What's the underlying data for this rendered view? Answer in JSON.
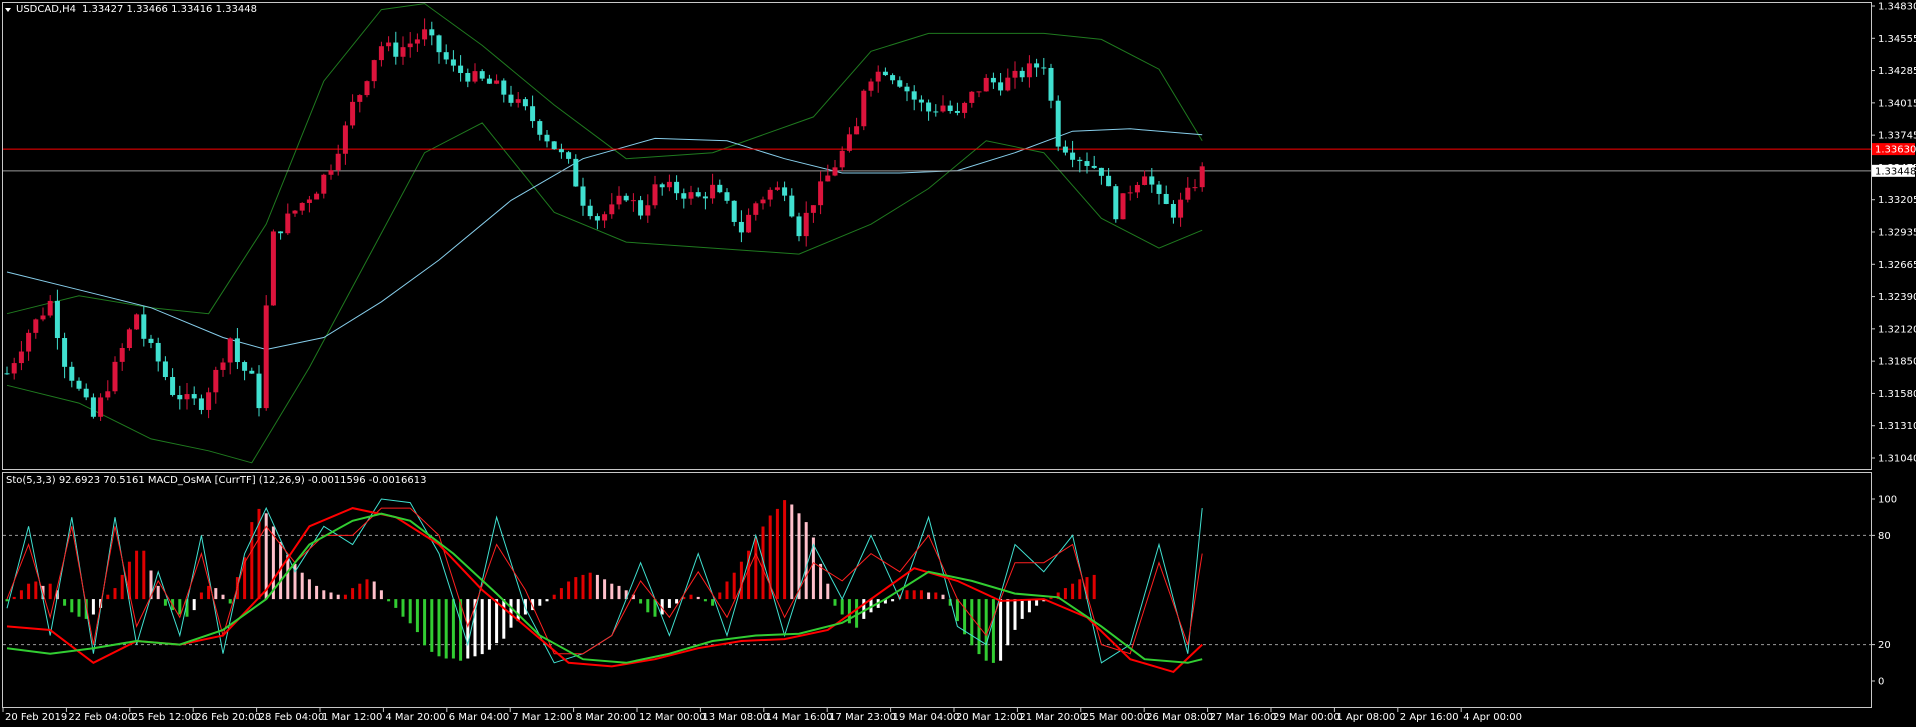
{
  "header": {
    "symbol": "USDCAD,H4",
    "ohlc": "1.33427 1.33466 1.33416 1.33448"
  },
  "indicator_header": "Sto(5,3,3) 92.6923 70.5161  MACD_OsMA [CurrTF] (12,26,9) -0.0011596 -0.0016613",
  "price_axis": {
    "ticks": [
      "1.34830",
      "1.34555",
      "1.34285",
      "1.34015",
      "1.33745",
      "1.33475",
      "1.33205",
      "1.32935",
      "1.32665",
      "1.32390",
      "1.32120",
      "1.31850",
      "1.31580",
      "1.31310",
      "1.31040"
    ],
    "red_line_label": "1.33630",
    "current_label": "1.33448"
  },
  "indicator_axis": {
    "ticks": [
      "100",
      "80",
      "20",
      "0"
    ]
  },
  "time_axis": [
    "20 Feb 2019",
    "22 Feb 04:00",
    "25 Feb 12:00",
    "26 Feb 20:00",
    "28 Feb 04:00",
    "1 Mar 12:00",
    "4 Mar 20:00",
    "6 Mar 04:00",
    "7 Mar 12:00",
    "8 Mar 20:00",
    "12 Mar 00:00",
    "13 Mar 08:00",
    "14 Mar 16:00",
    "17 Mar 23:00",
    "19 Mar 04:00",
    "20 Mar 12:00",
    "21 Mar 20:00",
    "25 Mar 00:00",
    "26 Mar 08:00",
    "27 Mar 16:00",
    "29 Mar 00:00",
    "1 Apr 08:00",
    "2 Apr 16:00",
    "4 Apr 00:00"
  ],
  "colors": {
    "background": "#000000",
    "bull": "#dc143c",
    "bear": "#40e0d0",
    "band": "#1f7a1f",
    "ma": "#87ceeb",
    "red_line": "#ff0000",
    "stoch_main": "#40e0d0",
    "stoch_signal": "#ff2020",
    "macd_signal": "#ff0000",
    "macd_line": "#32cd32",
    "hist_up_strong": "#e00000",
    "hist_up_weak": "#ffc0cb",
    "hist_down_strong": "#32cd32",
    "hist_down_weak": "#ffffff"
  },
  "chart_data": [
    {
      "type": "candlestick",
      "title": "USDCAD,H4",
      "ylim": [
        1.3104,
        1.3483
      ],
      "close_path": [
        [
          0,
          1.3175
        ],
        [
          3,
          1.321
        ],
        [
          6,
          1.3235
        ],
        [
          8,
          1.3185
        ],
        [
          10,
          1.316
        ],
        [
          12,
          1.3138
        ],
        [
          14,
          1.3165
        ],
        [
          16,
          1.3195
        ],
        [
          18,
          1.3225
        ],
        [
          19,
          1.3205
        ],
        [
          21,
          1.3185
        ],
        [
          23,
          1.316
        ],
        [
          25,
          1.3152
        ],
        [
          27,
          1.315
        ],
        [
          29,
          1.3175
        ],
        [
          31,
          1.3205
        ],
        [
          32,
          1.3185
        ],
        [
          34,
          1.317
        ],
        [
          35,
          1.315
        ],
        [
          36,
          1.323
        ],
        [
          37,
          1.329
        ],
        [
          39,
          1.3305
        ],
        [
          41,
          1.3318
        ],
        [
          43,
          1.333
        ],
        [
          45,
          1.335
        ],
        [
          47,
          1.338
        ],
        [
          48,
          1.34
        ],
        [
          49,
          1.341
        ],
        [
          50,
          1.3425
        ],
        [
          51,
          1.344
        ],
        [
          52,
          1.345
        ],
        [
          54,
          1.3445
        ],
        [
          56,
          1.3452
        ],
        [
          58,
          1.346
        ],
        [
          60,
          1.3445
        ],
        [
          62,
          1.343
        ],
        [
          64,
          1.3425
        ],
        [
          66,
          1.342
        ],
        [
          68,
          1.3415
        ],
        [
          70,
          1.3405
        ],
        [
          72,
          1.3395
        ],
        [
          74,
          1.338
        ],
        [
          76,
          1.3365
        ],
        [
          78,
          1.335
        ],
        [
          80,
          1.332
        ],
        [
          82,
          1.3305
        ],
        [
          84,
          1.3312
        ],
        [
          86,
          1.3325
        ],
        [
          88,
          1.331
        ],
        [
          90,
          1.333
        ],
        [
          92,
          1.333
        ],
        [
          94,
          1.3326
        ],
        [
          96,
          1.3322
        ],
        [
          98,
          1.333
        ],
        [
          100,
          1.3315
        ],
        [
          102,
          1.3295
        ],
        [
          104,
          1.3318
        ],
        [
          106,
          1.3328
        ],
        [
          108,
          1.333
        ],
        [
          110,
          1.3295
        ],
        [
          112,
          1.332
        ],
        [
          114,
          1.334
        ],
        [
          116,
          1.336
        ],
        [
          118,
          1.338
        ],
        [
          119,
          1.3415
        ],
        [
          120,
          1.3425
        ],
        [
          122,
          1.343
        ],
        [
          124,
          1.342
        ],
        [
          126,
          1.3405
        ],
        [
          128,
          1.3395
        ],
        [
          130,
          1.34
        ],
        [
          132,
          1.339
        ],
        [
          134,
          1.3408
        ],
        [
          136,
          1.342
        ],
        [
          138,
          1.3418
        ],
        [
          140,
          1.3423
        ],
        [
          142,
          1.343
        ],
        [
          144,
          1.3435
        ],
        [
          146,
          1.337
        ],
        [
          148,
          1.336
        ],
        [
          150,
          1.3352
        ],
        [
          152,
          1.3345
        ],
        [
          154,
          1.331
        ],
        [
          156,
          1.333
        ],
        [
          158,
          1.3345
        ],
        [
          160,
          1.332
        ],
        [
          162,
          1.331
        ],
        [
          164,
          1.3325
        ],
        [
          166,
          1.3345
        ]
      ],
      "bollinger_upper": [
        [
          0,
          1.3225
        ],
        [
          10,
          1.324
        ],
        [
          20,
          1.323
        ],
        [
          28,
          1.3225
        ],
        [
          36,
          1.33
        ],
        [
          44,
          1.342
        ],
        [
          52,
          1.348
        ],
        [
          58,
          1.3485
        ],
        [
          66,
          1.345
        ],
        [
          76,
          1.34
        ],
        [
          86,
          1.3355
        ],
        [
          98,
          1.336
        ],
        [
          112,
          1.339
        ],
        [
          120,
          1.3445
        ],
        [
          128,
          1.346
        ],
        [
          136,
          1.346
        ],
        [
          144,
          1.346
        ],
        [
          152,
          1.3455
        ],
        [
          160,
          1.343
        ],
        [
          166,
          1.337
        ]
      ],
      "bollinger_lower": [
        [
          0,
          1.3165
        ],
        [
          10,
          1.315
        ],
        [
          20,
          1.312
        ],
        [
          28,
          1.311
        ],
        [
          34,
          1.31
        ],
        [
          42,
          1.318
        ],
        [
          50,
          1.327
        ],
        [
          58,
          1.336
        ],
        [
          66,
          1.3385
        ],
        [
          76,
          1.331
        ],
        [
          86,
          1.3285
        ],
        [
          98,
          1.328
        ],
        [
          110,
          1.3275
        ],
        [
          120,
          1.33
        ],
        [
          128,
          1.333
        ],
        [
          136,
          1.337
        ],
        [
          144,
          1.336
        ],
        [
          152,
          1.3305
        ],
        [
          160,
          1.328
        ],
        [
          166,
          1.3295
        ]
      ],
      "moving_average": [
        [
          0,
          1.326
        ],
        [
          10,
          1.3245
        ],
        [
          20,
          1.323
        ],
        [
          30,
          1.3205
        ],
        [
          36,
          1.3195
        ],
        [
          44,
          1.3205
        ],
        [
          52,
          1.3235
        ],
        [
          60,
          1.327
        ],
        [
          70,
          1.332
        ],
        [
          80,
          1.3355
        ],
        [
          90,
          1.3372
        ],
        [
          100,
          1.337
        ],
        [
          108,
          1.3355
        ],
        [
          116,
          1.3343
        ],
        [
          124,
          1.3343
        ],
        [
          132,
          1.3345
        ],
        [
          140,
          1.336
        ],
        [
          148,
          1.3378
        ],
        [
          156,
          1.338
        ],
        [
          166,
          1.3375
        ]
      ],
      "red_line": 1.3363,
      "current": 1.33448
    },
    {
      "type": "oscillator",
      "title": "Sto(5,3,3) / MACD_OsMA",
      "ylim": [
        0,
        100
      ],
      "levels": [
        80,
        20
      ],
      "stoch_main": [
        [
          0,
          40
        ],
        [
          3,
          85
        ],
        [
          6,
          25
        ],
        [
          9,
          90
        ],
        [
          12,
          15
        ],
        [
          15,
          90
        ],
        [
          18,
          20
        ],
        [
          21,
          60
        ],
        [
          24,
          25
        ],
        [
          27,
          80
        ],
        [
          30,
          15
        ],
        [
          33,
          70
        ],
        [
          36,
          95
        ],
        [
          40,
          60
        ],
        [
          44,
          85
        ],
        [
          48,
          75
        ],
        [
          52,
          100
        ],
        [
          56,
          98
        ],
        [
          60,
          70
        ],
        [
          64,
          20
        ],
        [
          68,
          90
        ],
        [
          72,
          40
        ],
        [
          76,
          10
        ],
        [
          80,
          15
        ],
        [
          84,
          25
        ],
        [
          88,
          65
        ],
        [
          92,
          25
        ],
        [
          96,
          70
        ],
        [
          100,
          25
        ],
        [
          104,
          80
        ],
        [
          108,
          25
        ],
        [
          112,
          75
        ],
        [
          116,
          45
        ],
        [
          120,
          80
        ],
        [
          124,
          45
        ],
        [
          128,
          90
        ],
        [
          132,
          30
        ],
        [
          136,
          20
        ],
        [
          140,
          75
        ],
        [
          144,
          60
        ],
        [
          148,
          80
        ],
        [
          152,
          10
        ],
        [
          156,
          20
        ],
        [
          160,
          75
        ],
        [
          164,
          15
        ],
        [
          166,
          95
        ]
      ],
      "stoch_signal": [
        [
          0,
          45
        ],
        [
          3,
          75
        ],
        [
          6,
          35
        ],
        [
          9,
          85
        ],
        [
          12,
          20
        ],
        [
          15,
          85
        ],
        [
          18,
          30
        ],
        [
          21,
          55
        ],
        [
          24,
          35
        ],
        [
          27,
          70
        ],
        [
          30,
          25
        ],
        [
          33,
          65
        ],
        [
          36,
          85
        ],
        [
          40,
          65
        ],
        [
          44,
          80
        ],
        [
          48,
          80
        ],
        [
          52,
          95
        ],
        [
          56,
          95
        ],
        [
          60,
          80
        ],
        [
          64,
          30
        ],
        [
          68,
          75
        ],
        [
          72,
          50
        ],
        [
          76,
          15
        ],
        [
          80,
          15
        ],
        [
          84,
          25
        ],
        [
          88,
          55
        ],
        [
          92,
          35
        ],
        [
          96,
          60
        ],
        [
          100,
          35
        ],
        [
          104,
          70
        ],
        [
          108,
          35
        ],
        [
          112,
          65
        ],
        [
          116,
          55
        ],
        [
          120,
          70
        ],
        [
          124,
          60
        ],
        [
          128,
          80
        ],
        [
          132,
          45
        ],
        [
          136,
          25
        ],
        [
          140,
          65
        ],
        [
          144,
          65
        ],
        [
          148,
          75
        ],
        [
          152,
          20
        ],
        [
          156,
          15
        ],
        [
          160,
          65
        ],
        [
          164,
          20
        ],
        [
          166,
          70
        ]
      ],
      "macd_signal": [
        [
          0,
          30
        ],
        [
          6,
          28
        ],
        [
          12,
          10
        ],
        [
          18,
          22
        ],
        [
          24,
          20
        ],
        [
          30,
          25
        ],
        [
          36,
          50
        ],
        [
          42,
          85
        ],
        [
          48,
          95
        ],
        [
          54,
          90
        ],
        [
          60,
          75
        ],
        [
          66,
          50
        ],
        [
          72,
          30
        ],
        [
          78,
          10
        ],
        [
          84,
          8
        ],
        [
          90,
          12
        ],
        [
          96,
          18
        ],
        [
          102,
          22
        ],
        [
          108,
          23
        ],
        [
          114,
          28
        ],
        [
          120,
          45
        ],
        [
          126,
          62
        ],
        [
          132,
          55
        ],
        [
          138,
          44
        ],
        [
          144,
          45
        ],
        [
          150,
          35
        ],
        [
          156,
          12
        ],
        [
          162,
          5
        ],
        [
          166,
          20
        ]
      ],
      "macd_line": [
        [
          0,
          18
        ],
        [
          6,
          15
        ],
        [
          12,
          18
        ],
        [
          18,
          22
        ],
        [
          24,
          20
        ],
        [
          30,
          28
        ],
        [
          36,
          45
        ],
        [
          42,
          75
        ],
        [
          48,
          88
        ],
        [
          52,
          92
        ],
        [
          56,
          88
        ],
        [
          62,
          70
        ],
        [
          68,
          48
        ],
        [
          74,
          25
        ],
        [
          80,
          12
        ],
        [
          86,
          10
        ],
        [
          92,
          15
        ],
        [
          98,
          22
        ],
        [
          104,
          25
        ],
        [
          110,
          26
        ],
        [
          116,
          32
        ],
        [
          122,
          45
        ],
        [
          128,
          60
        ],
        [
          134,
          55
        ],
        [
          140,
          48
        ],
        [
          146,
          46
        ],
        [
          152,
          30
        ],
        [
          158,
          12
        ],
        [
          164,
          10
        ],
        [
          166,
          12
        ]
      ],
      "histogram": [
        -1,
        1,
        4,
        7,
        8,
        6,
        7,
        4,
        -3,
        -6,
        -8,
        -9,
        -7,
        -4,
        2,
        5,
        11,
        17,
        22,
        22,
        13,
        6,
        -3,
        -5,
        -7,
        -8,
        -5,
        3,
        6,
        5,
        2,
        -2,
        10,
        19,
        35,
        41,
        39,
        33,
        26,
        20,
        16,
        12,
        9,
        6,
        4,
        3,
        2,
        2,
        5,
        7,
        9,
        8,
        4,
        -1,
        -4,
        -8,
        -11,
        -15,
        -21,
        -24,
        -26,
        -27,
        -27,
        -28,
        -27,
        -26,
        -25,
        -23,
        -20,
        -18,
        -13,
        -10,
        -7,
        -5,
        -3,
        -1,
        2,
        5,
        8,
        10,
        11,
        12,
        11,
        9,
        7,
        6,
        4,
        2,
        -2,
        -6,
        -8,
        -7,
        -4,
        -2,
        1,
        2,
        1,
        -1,
        -3,
        3,
        8,
        12,
        17,
        22,
        28,
        33,
        38,
        41,
        45,
        43,
        39,
        35,
        28,
        16,
        7,
        -3,
        -7,
        -11,
        -13,
        -9,
        -6,
        -4,
        -2,
        -1,
        2,
        4,
        4,
        4,
        3,
        3,
        2,
        -3,
        -10,
        -16,
        -21,
        -25,
        -28,
        -29,
        -28,
        -21,
        -14,
        -9,
        -6,
        -3,
        -1,
        1,
        3,
        5,
        7,
        9,
        10,
        11
      ]
    }
  ]
}
